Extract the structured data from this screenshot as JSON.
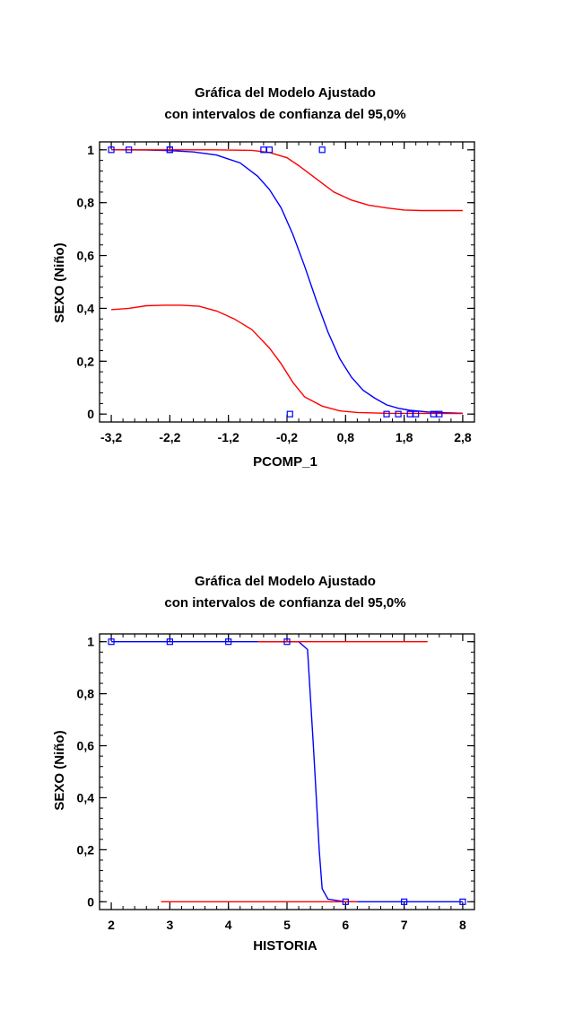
{
  "chart_data": [
    {
      "type": "line",
      "title": "Gráfica del Modelo Ajustado",
      "subtitle": "con intervalos de confianza del 95,0%",
      "xlabel": "PCOMP_1",
      "ylabel": "SEXO (Niño)",
      "xlim": [
        -3.4,
        3.0
      ],
      "ylim": [
        -0.03,
        1.03
      ],
      "xticks": [
        -3.2,
        -2.2,
        -1.2,
        -0.2,
        0.8,
        1.8,
        2.8
      ],
      "xtick_labels": [
        "-3,2",
        "-2,2",
        "-1,2",
        "-0,2",
        "0,8",
        "1,8",
        "2,8"
      ],
      "yticks": [
        0,
        0.2,
        0.4,
        0.6,
        0.8,
        1
      ],
      "ytick_labels": [
        "0",
        "0,2",
        "0,4",
        "0,6",
        "0,8",
        "1"
      ],
      "grid": false,
      "series": [
        {
          "kind": "line",
          "color": "#0000ff",
          "points": [
            [
              -3.2,
              1.0
            ],
            [
              -2.6,
              0.999
            ],
            [
              -2.2,
              0.997
            ],
            [
              -1.8,
              0.992
            ],
            [
              -1.4,
              0.98
            ],
            [
              -1.0,
              0.95
            ],
            [
              -0.7,
              0.9
            ],
            [
              -0.5,
              0.85
            ],
            [
              -0.3,
              0.78
            ],
            [
              -0.1,
              0.68
            ],
            [
              0.1,
              0.56
            ],
            [
              0.3,
              0.43
            ],
            [
              0.5,
              0.31
            ],
            [
              0.7,
              0.21
            ],
            [
              0.9,
              0.14
            ],
            [
              1.1,
              0.09
            ],
            [
              1.3,
              0.06
            ],
            [
              1.5,
              0.035
            ],
            [
              1.7,
              0.022
            ],
            [
              1.9,
              0.014
            ],
            [
              2.2,
              0.008
            ],
            [
              2.5,
              0.005
            ],
            [
              2.8,
              0.003
            ]
          ]
        },
        {
          "kind": "line",
          "color": "#ff0000",
          "points": [
            [
              -3.2,
              1.0
            ],
            [
              -1.5,
              1.0
            ],
            [
              -0.8,
              0.998
            ],
            [
              -0.5,
              0.99
            ],
            [
              -0.2,
              0.97
            ],
            [
              0.0,
              0.94
            ],
            [
              0.3,
              0.89
            ],
            [
              0.6,
              0.84
            ],
            [
              0.9,
              0.81
            ],
            [
              1.2,
              0.79
            ],
            [
              1.5,
              0.78
            ],
            [
              1.8,
              0.772
            ],
            [
              2.1,
              0.77
            ],
            [
              2.8,
              0.77
            ]
          ]
        },
        {
          "kind": "line",
          "color": "#ff0000",
          "points": [
            [
              -3.2,
              0.395
            ],
            [
              -2.9,
              0.4
            ],
            [
              -2.6,
              0.41
            ],
            [
              -2.3,
              0.412
            ],
            [
              -2.0,
              0.412
            ],
            [
              -1.7,
              0.408
            ],
            [
              -1.4,
              0.39
            ],
            [
              -1.1,
              0.36
            ],
            [
              -0.8,
              0.32
            ],
            [
              -0.5,
              0.25
            ],
            [
              -0.3,
              0.19
            ],
            [
              -0.1,
              0.12
            ],
            [
              0.1,
              0.065
            ],
            [
              0.4,
              0.03
            ],
            [
              0.7,
              0.012
            ],
            [
              1.0,
              0.006
            ],
            [
              1.5,
              0.003
            ],
            [
              2.8,
              0.002
            ]
          ]
        },
        {
          "kind": "scatter",
          "color": "#0000ff",
          "points": [
            [
              -3.2,
              1
            ],
            [
              -2.9,
              1
            ],
            [
              -2.2,
              1
            ],
            [
              -2.2,
              1
            ],
            [
              -0.6,
              1
            ],
            [
              -0.5,
              1
            ],
            [
              0.4,
              1
            ],
            [
              -0.15,
              0
            ],
            [
              1.5,
              0
            ],
            [
              1.7,
              0
            ],
            [
              1.9,
              0
            ],
            [
              2.0,
              0
            ],
            [
              2.3,
              0
            ],
            [
              2.4,
              0
            ]
          ]
        }
      ]
    },
    {
      "type": "line",
      "title": "Gráfica del Modelo Ajustado",
      "subtitle": "con intervalos de confianza del 95,0%",
      "xlabel": "HISTORIA",
      "ylabel": "SEXO (Niño)",
      "xlim": [
        1.8,
        8.2
      ],
      "ylim": [
        -0.03,
        1.03
      ],
      "xticks": [
        2,
        3,
        4,
        5,
        6,
        7,
        8
      ],
      "xtick_labels": [
        "2",
        "3",
        "4",
        "5",
        "6",
        "7",
        "8"
      ],
      "yticks": [
        0,
        0.2,
        0.4,
        0.6,
        0.8,
        1
      ],
      "ytick_labels": [
        "0",
        "0,2",
        "0,4",
        "0,6",
        "0,8",
        "1"
      ],
      "grid": false,
      "series": [
        {
          "kind": "line",
          "color": "#0000ff",
          "points": [
            [
              2,
              1.0
            ],
            [
              5.2,
              1.0
            ],
            [
              5.35,
              0.97
            ],
            [
              5.45,
              0.6
            ],
            [
              5.5,
              0.4
            ],
            [
              5.55,
              0.2
            ],
            [
              5.6,
              0.05
            ],
            [
              5.7,
              0.01
            ],
            [
              6.0,
              0.0
            ],
            [
              8,
              0.0
            ]
          ]
        },
        {
          "kind": "line",
          "color": "#ff0000",
          "points": [
            [
              4.5,
              1.0
            ],
            [
              7.4,
              1.0
            ]
          ]
        },
        {
          "kind": "line",
          "color": "#ff0000",
          "points": [
            [
              2.85,
              0.0
            ],
            [
              6.2,
              0.0
            ]
          ]
        },
        {
          "kind": "scatter",
          "color": "#0000ff",
          "points": [
            [
              2,
              1
            ],
            [
              3,
              1
            ],
            [
              4,
              1
            ],
            [
              5,
              1
            ],
            [
              6,
              0
            ],
            [
              7,
              0
            ],
            [
              8,
              0
            ]
          ]
        }
      ]
    }
  ]
}
